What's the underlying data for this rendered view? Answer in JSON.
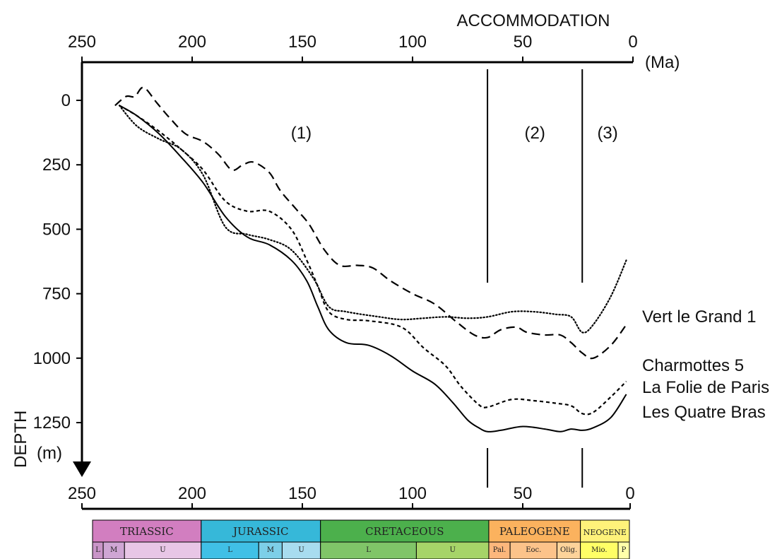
{
  "chart_data": {
    "type": "line",
    "title": "",
    "xlabel": "ACCOMMODATION",
    "xunit": "(Ma)",
    "ylabel": "DEPTH",
    "yunit": "(m)",
    "xlim": [
      250,
      0
    ],
    "ylim": [
      0,
      1250
    ],
    "x_ticks": [
      "250",
      "200",
      "150",
      "100",
      "50",
      "0"
    ],
    "x_tick_values": [
      250,
      200,
      150,
      100,
      50,
      0
    ],
    "y_ticks": [
      "0",
      "250",
      "500",
      "750",
      "1000",
      "1250"
    ],
    "y_tick_values": [
      0,
      250,
      500,
      750,
      1000,
      1250
    ],
    "zones": [
      {
        "label": "(1)",
        "from": 235,
        "to": 66
      },
      {
        "label": "(2)",
        "from": 66,
        "to": 23
      },
      {
        "label": "(3)",
        "from": 23,
        "to": 0
      }
    ],
    "boundaries": [
      66,
      23
    ],
    "series": [
      {
        "name": "Les Quatre Bras",
        "style": "dotted",
        "x": [
          233,
          225,
          215,
          205,
          195,
          185,
          175,
          165,
          155,
          145,
          138,
          130,
          115,
          105,
          95,
          85,
          75,
          66,
          55,
          45,
          35,
          28,
          23,
          18,
          10,
          3
        ],
        "y": [
          20,
          100,
          150,
          190,
          290,
          490,
          520,
          540,
          580,
          690,
          800,
          820,
          840,
          850,
          845,
          840,
          845,
          840,
          820,
          820,
          830,
          840,
          900,
          870,
          760,
          620
        ]
      },
      {
        "name": "Vert le Grand 1",
        "style": "dashed",
        "x": [
          235,
          230,
          226,
          222,
          216,
          210,
          203,
          195,
          188,
          182,
          177,
          172,
          165,
          160,
          153,
          147,
          140,
          133,
          125,
          118,
          110,
          100,
          90,
          80,
          72,
          66,
          60,
          53,
          48,
          40,
          33,
          28,
          23,
          18,
          10,
          3
        ],
        "y": [
          20,
          -15,
          -15,
          -50,
          10,
          70,
          130,
          160,
          210,
          270,
          250,
          240,
          280,
          350,
          420,
          480,
          580,
          640,
          640,
          650,
          700,
          750,
          790,
          860,
          910,
          920,
          890,
          880,
          900,
          910,
          910,
          940,
          980,
          1000,
          950,
          870
        ]
      },
      {
        "name": "Charmottes 5",
        "style": "short-dashed",
        "x": [
          233,
          225,
          215,
          205,
          195,
          185,
          175,
          165,
          155,
          148,
          143,
          138,
          130,
          120,
          105,
          95,
          85,
          78,
          70,
          66,
          55,
          45,
          35,
          28,
          23,
          18,
          10,
          3
        ],
        "y": [
          20,
          60,
          120,
          190,
          270,
          390,
          430,
          430,
          500,
          620,
          720,
          820,
          850,
          855,
          880,
          960,
          1030,
          1110,
          1180,
          1190,
          1160,
          1165,
          1175,
          1185,
          1215,
          1210,
          1150,
          1090
        ]
      },
      {
        "name": "La Folie de Paris",
        "style": "solid",
        "x": [
          233,
          225,
          215,
          205,
          195,
          185,
          175,
          165,
          155,
          148,
          143,
          138,
          130,
          120,
          110,
          100,
          90,
          82,
          75,
          70,
          66,
          60,
          50,
          40,
          33,
          28,
          23,
          18,
          10,
          3
        ],
        "y": [
          20,
          60,
          130,
          220,
          320,
          450,
          530,
          560,
          620,
          700,
          800,
          890,
          940,
          950,
          990,
          1050,
          1100,
          1170,
          1240,
          1270,
          1285,
          1280,
          1265,
          1275,
          1285,
          1275,
          1280,
          1270,
          1230,
          1140
        ]
      }
    ],
    "timescale": {
      "periods": [
        {
          "name": "TRIASSIC",
          "from": 252,
          "to": 201,
          "color": "#d27ec0"
        },
        {
          "name": "JURASSIC",
          "from": 201,
          "to": 145,
          "color": "#36b8d9"
        },
        {
          "name": "CRETACEOUS",
          "from": 145,
          "to": 66,
          "color": "#4cb04c"
        },
        {
          "name": "PALEOGENE",
          "from": 66,
          "to": 23,
          "color": "#fbb25e"
        },
        {
          "name": "NEOGENE",
          "from": 23,
          "to": 0,
          "color": "#fff27a"
        }
      ],
      "epochs": [
        {
          "name": "L",
          "from": 252,
          "to": 247,
          "color": "#c995c8"
        },
        {
          "name": "M",
          "from": 247,
          "to": 237,
          "color": "#cfa6d4"
        },
        {
          "name": "U",
          "from": 237,
          "to": 201,
          "color": "#e8c6e6"
        },
        {
          "name": "L",
          "from": 201,
          "to": 174,
          "color": "#40c0e6"
        },
        {
          "name": "M",
          "from": 174,
          "to": 163,
          "color": "#7dcfe8"
        },
        {
          "name": "U",
          "from": 163,
          "to": 145,
          "color": "#a8dcef"
        },
        {
          "name": "L",
          "from": 145,
          "to": 100,
          "color": "#80c568"
        },
        {
          "name": "U",
          "from": 100,
          "to": 66,
          "color": "#a6d468"
        },
        {
          "name": "Pal.",
          "from": 66,
          "to": 56,
          "color": "#fcb77c"
        },
        {
          "name": "Eoc.",
          "from": 56,
          "to": 34,
          "color": "#fcc38a"
        },
        {
          "name": "Olig.",
          "from": 34,
          "to": 23,
          "color": "#fdd39a"
        },
        {
          "name": "Mio.",
          "from": 23,
          "to": 5.3,
          "color": "#ffff66"
        },
        {
          "name": "P",
          "from": 5.3,
          "to": 0,
          "color": "#ffffaa"
        }
      ]
    }
  }
}
